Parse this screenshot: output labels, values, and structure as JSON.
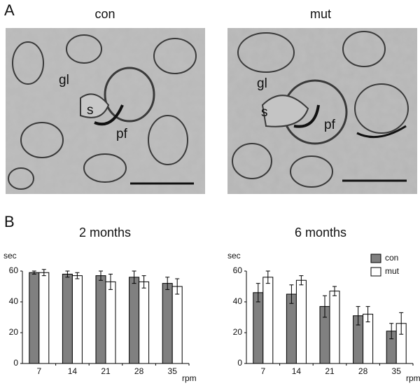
{
  "panel_a": {
    "label": "A",
    "images": [
      {
        "title": "con",
        "labels": [
          "gl",
          "s",
          "pf"
        ]
      },
      {
        "title": "mut",
        "labels": [
          "gl",
          "s",
          "pf"
        ]
      }
    ]
  },
  "panel_b": {
    "label": "B"
  },
  "chart_data": [
    {
      "type": "bar",
      "title": "2 months",
      "y_label": "sec",
      "x_label": "rpm",
      "categories": [
        "7",
        "14",
        "21",
        "28",
        "35"
      ],
      "series": [
        {
          "color": "#808080",
          "values": [
            59,
            58,
            57,
            56,
            52
          ],
          "errors": [
            1,
            2,
            3,
            4,
            4
          ]
        },
        {
          "color": "#ffffff",
          "values": [
            59,
            57,
            53,
            53,
            50
          ],
          "errors": [
            2,
            2,
            5,
            4,
            5
          ]
        }
      ],
      "ylim": [
        0,
        60
      ],
      "yticks": [
        0,
        20,
        40,
        60
      ]
    },
    {
      "type": "bar",
      "title": "6 months",
      "y_label": "sec",
      "x_label": "rpm",
      "categories": [
        "7",
        "14",
        "21",
        "28",
        "35"
      ],
      "series": [
        {
          "name": "con",
          "color": "#808080",
          "values": [
            46,
            45,
            37,
            31,
            21
          ],
          "errors": [
            6,
            6,
            7,
            6,
            5
          ]
        },
        {
          "name": "mut",
          "color": "#ffffff",
          "values": [
            56,
            54,
            47,
            32,
            26
          ],
          "errors": [
            4,
            3,
            3,
            5,
            7
          ]
        }
      ],
      "ylim": [
        0,
        60
      ],
      "yticks": [
        0,
        20,
        40,
        60
      ],
      "legend": "upper right"
    }
  ]
}
